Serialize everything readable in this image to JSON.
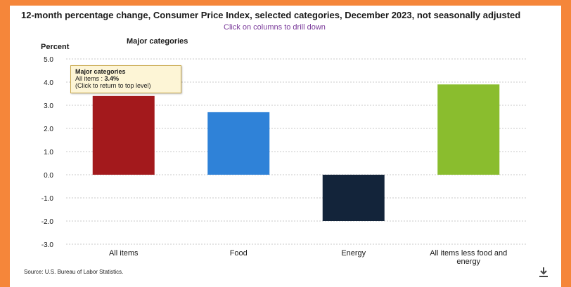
{
  "title": "12-month percentage change, Consumer Price Index, selected categories, December 2023, not seasonally adjusted",
  "drill_hint": "Click on columns to drill down",
  "tooltip": {
    "title": "Major categories",
    "line_label": "All items : ",
    "line_value": "3.4%",
    "hint": "(Click to return to top level)"
  },
  "source": "Source: U.S. Bureau of Labor Statistics.",
  "chart_data": {
    "type": "bar",
    "title": "12-month percentage change, Consumer Price Index, selected categories, December 2023, not seasonally adjusted",
    "subtitle": "Major categories",
    "ylabel": "Percent",
    "xlabel": "",
    "ylim": [
      -3.0,
      5.0
    ],
    "yticks": [
      "5.0",
      "4.0",
      "3.0",
      "2.0",
      "1.0",
      "0.0",
      "-1.0",
      "-2.0",
      "-3.0"
    ],
    "ytick_values": [
      5,
      4,
      3,
      2,
      1,
      0,
      -1,
      -2,
      -3
    ],
    "grid": true,
    "categories": [
      "All items",
      "Food",
      "Energy",
      "All items less food and energy"
    ],
    "values": [
      3.4,
      2.7,
      -2.0,
      3.9
    ],
    "colors": [
      "#a3191c",
      "#2f82d8",
      "#13243a",
      "#8abd2e"
    ]
  }
}
